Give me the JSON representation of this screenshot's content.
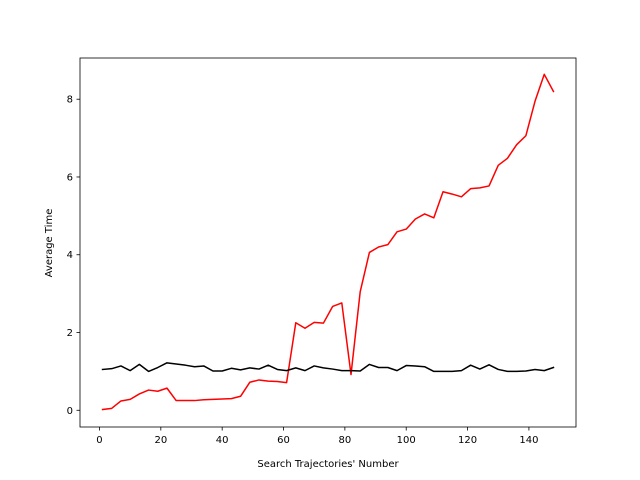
{
  "chart_data": {
    "type": "line",
    "title": "",
    "xlabel": "Search Trajectories' Number",
    "ylabel": "Average Time",
    "xlim": [
      -6.35,
      155.35
    ],
    "ylim": [
      -0.43,
      9.06
    ],
    "xticks": [
      0,
      20,
      40,
      60,
      80,
      100,
      120,
      140
    ],
    "yticks": [
      0,
      2,
      4,
      6,
      8
    ],
    "grid": false,
    "legend": "none",
    "x": [
      1,
      4,
      7,
      10,
      13,
      16,
      19,
      22,
      25,
      28,
      31,
      34,
      37,
      40,
      43,
      46,
      49,
      52,
      55,
      58,
      61,
      64,
      67,
      70,
      73,
      76,
      79,
      82,
      85,
      88,
      91,
      94,
      97,
      100,
      103,
      106,
      109,
      112,
      115,
      118,
      121,
      124,
      127,
      130,
      133,
      136,
      139,
      142,
      145,
      148
    ],
    "series": [
      {
        "color": "#ff0000",
        "values": [
          0.02,
          0.05,
          0.24,
          0.28,
          0.42,
          0.52,
          0.49,
          0.57,
          0.25,
          0.25,
          0.25,
          0.27,
          0.28,
          0.29,
          0.3,
          0.36,
          0.72,
          0.78,
          0.75,
          0.74,
          0.71,
          2.25,
          2.11,
          2.26,
          2.24,
          2.67,
          2.76,
          0.92,
          3.05,
          4.06,
          4.2,
          4.26,
          4.59,
          4.66,
          4.92,
          5.05,
          4.95,
          5.62,
          5.56,
          5.49,
          5.7,
          5.72,
          5.77,
          6.3,
          6.48,
          6.83,
          7.06,
          7.95,
          8.64,
          8.2
        ]
      },
      {
        "color": "#000000",
        "values": [
          1.05,
          1.07,
          1.14,
          1.02,
          1.18,
          1.0,
          1.1,
          1.22,
          1.19,
          1.16,
          1.12,
          1.14,
          1.01,
          1.01,
          1.08,
          1.04,
          1.09,
          1.06,
          1.16,
          1.05,
          1.02,
          1.09,
          1.02,
          1.14,
          1.09,
          1.06,
          1.02,
          1.02,
          1.01,
          1.18,
          1.1,
          1.1,
          1.02,
          1.15,
          1.14,
          1.12,
          1.0,
          1.0,
          1.0,
          1.02,
          1.16,
          1.06,
          1.17,
          1.05,
          1.0,
          1.0,
          1.01,
          1.05,
          1.02,
          1.1
        ]
      }
    ]
  }
}
